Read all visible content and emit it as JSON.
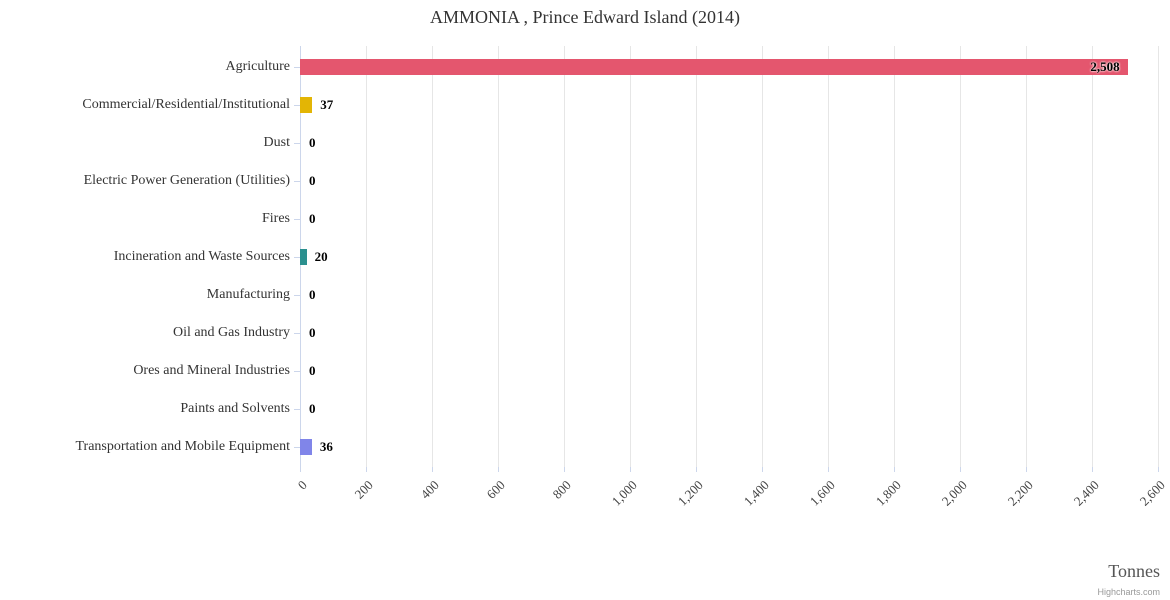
{
  "chart_data": {
    "type": "bar",
    "orientation": "horizontal",
    "title": "AMMONIA , Prince Edward Island (2014)",
    "categories": [
      "Agriculture",
      "Commercial/Residential/Institutional",
      "Dust",
      "Electric Power Generation (Utilities)",
      "Fires",
      "Incineration and Waste Sources",
      "Manufacturing",
      "Oil and Gas Industry",
      "Ores and Mineral Industries",
      "Paints and Solvents",
      "Transportation and Mobile Equipment"
    ],
    "values": [
      2508,
      37,
      0,
      0,
      0,
      20,
      0,
      0,
      0,
      0,
      36
    ],
    "value_labels": [
      "2,508",
      "37",
      "0",
      "0",
      "0",
      "20",
      "0",
      "0",
      "0",
      "0",
      "36"
    ],
    "bar_colors": [
      "#e4566e",
      "#e3b505",
      null,
      null,
      null,
      "#2b908f",
      null,
      null,
      null,
      null,
      "#8085e9"
    ],
    "xlabel": "Tonnes",
    "xlim": [
      0,
      2600
    ],
    "tick_interval": 200,
    "xticks": [
      "0",
      "200",
      "400",
      "600",
      "800",
      "1,000",
      "1,200",
      "1,400",
      "1,600",
      "1,800",
      "2,000",
      "2,200",
      "2,400",
      "2,600"
    ],
    "grid": true,
    "legend": false,
    "credit": "Highcharts.com"
  }
}
